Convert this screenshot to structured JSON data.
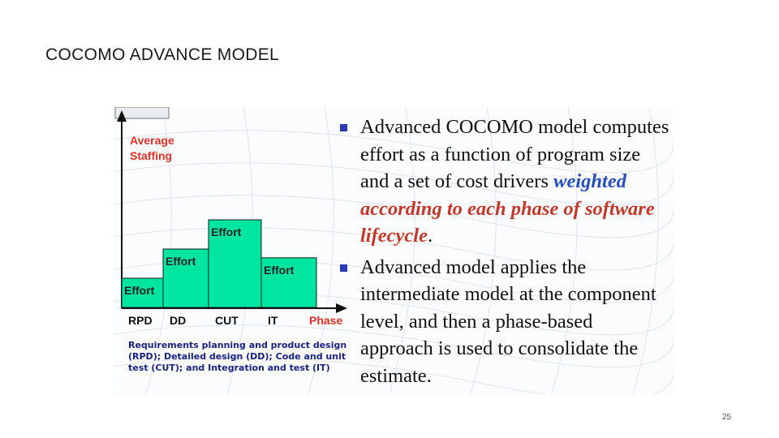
{
  "slide": {
    "title": "COCOMO ADVANCE MODEL",
    "page_number": "25"
  },
  "chart": {
    "y_label_line1": "Average",
    "y_label_line2": "Staffing",
    "x_label": "Phase",
    "blocks": [
      {
        "phase": "RPD",
        "label": "Effort",
        "level": 1
      },
      {
        "phase": "DD",
        "label": "Effort",
        "level": 2
      },
      {
        "phase": "CUT",
        "label": "Effort",
        "level": 3
      },
      {
        "phase": "IT",
        "label": "Effort",
        "level": 1.7
      }
    ],
    "caption_line1": "Requirements planning and product design",
    "caption_line2": "(RPD); Detailed design (DD); Code and unit",
    "caption_line3": "test (CUT); and Integration and test (IT)",
    "bar_color": "#00e5a0",
    "label_color": "#e0302a"
  },
  "bullets": {
    "b1_plain": "Advanced COCOMO model computes effort as a function of program size and a set of cost drivers ",
    "b1_blue": "weighted",
    "b1_space": " ",
    "b1_red": "according to each phase of software lifecycle",
    "b1_end": ".",
    "b2": "Advanced model applies the intermediate model at the component level, and then a phase-based approach is used to consolidate the estimate."
  }
}
